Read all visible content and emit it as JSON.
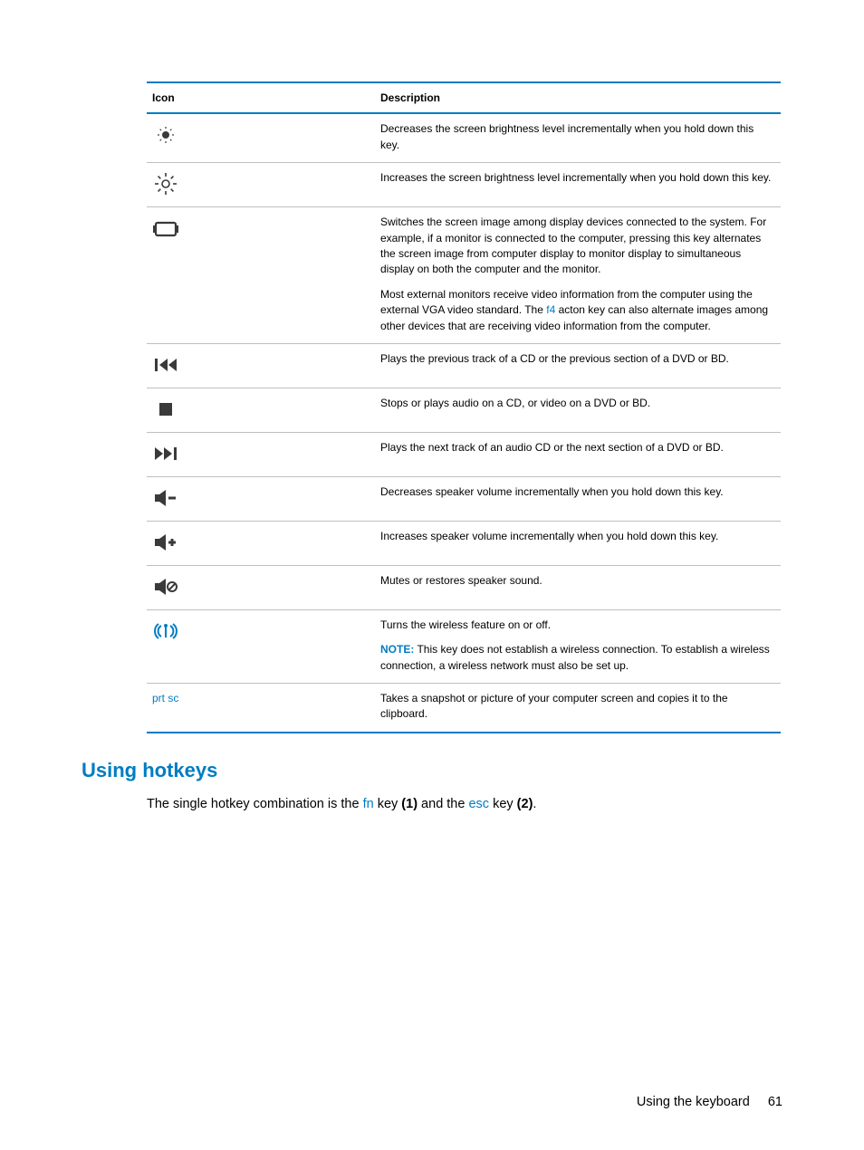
{
  "table": {
    "header_icon": "Icon",
    "header_desc": "Description",
    "rows": [
      {
        "icon": "brightness-down",
        "desc_html": [
          {
            "type": "text",
            "text": "Decreases the screen brightness level incrementally when you hold down this key."
          }
        ]
      },
      {
        "icon": "brightness-up",
        "desc_html": [
          {
            "type": "text",
            "text": "Increases the screen brightness level incrementally when you hold down this key."
          }
        ]
      },
      {
        "icon": "display-switch",
        "desc_html": [
          {
            "type": "para",
            "parts": [
              {
                "t": "text",
                "v": "Switches the screen image among display devices connected to the system. For example, if a monitor is connected to the computer, pressing this key alternates the screen image from computer display to monitor display to simultaneous display on both the computer and the monitor."
              }
            ]
          },
          {
            "type": "para",
            "parts": [
              {
                "t": "text",
                "v": "Most external monitors receive video information from the computer using the external VGA video standard. The "
              },
              {
                "t": "key",
                "v": "f4"
              },
              {
                "t": "text",
                "v": " acton key can also alternate images among other devices that are receiving video information from the computer."
              }
            ]
          }
        ]
      },
      {
        "icon": "prev-track",
        "desc_html": [
          {
            "type": "text",
            "text": "Plays the previous track of a CD or the previous section of a DVD or BD."
          }
        ]
      },
      {
        "icon": "stop",
        "desc_html": [
          {
            "type": "text",
            "text": "Stops or plays audio on a CD, or video on a DVD or BD."
          }
        ]
      },
      {
        "icon": "next-track",
        "desc_html": [
          {
            "type": "text",
            "text": "Plays the next track of an audio CD or the next section of a DVD or BD."
          }
        ]
      },
      {
        "icon": "volume-down",
        "desc_html": [
          {
            "type": "text",
            "text": "Decreases speaker volume incrementally when you hold down this key."
          }
        ]
      },
      {
        "icon": "volume-up",
        "desc_html": [
          {
            "type": "text",
            "text": "Increases speaker volume incrementally when you hold down this key."
          }
        ]
      },
      {
        "icon": "mute",
        "desc_html": [
          {
            "type": "text",
            "text": "Mutes or restores speaker sound."
          }
        ]
      },
      {
        "icon": "wireless",
        "desc_html": [
          {
            "type": "para",
            "parts": [
              {
                "t": "text",
                "v": "Turns the wireless feature on or off."
              }
            ]
          },
          {
            "type": "para",
            "parts": [
              {
                "t": "note",
                "v": "NOTE:"
              },
              {
                "t": "text",
                "v": "   This key does not establish a wireless connection. To establish a wireless connection, a wireless network must also be set up."
              }
            ]
          }
        ]
      },
      {
        "icon": "prtsc",
        "icon_text": "prt sc",
        "desc_html": [
          {
            "type": "text",
            "text": "Takes a snapshot or picture of your computer screen and copies it to the clipboard."
          }
        ]
      }
    ]
  },
  "section_heading": "Using hotkeys",
  "body_parts": [
    {
      "t": "text",
      "v": "The single hotkey combination is the "
    },
    {
      "t": "key",
      "v": "fn"
    },
    {
      "t": "text",
      "v": " key "
    },
    {
      "t": "bold",
      "v": "(1)"
    },
    {
      "t": "text",
      "v": " and the "
    },
    {
      "t": "key",
      "v": "esc"
    },
    {
      "t": "text",
      "v": " key "
    },
    {
      "t": "bold",
      "v": "(2)"
    },
    {
      "t": "text",
      "v": "."
    }
  ],
  "footer_text": "Using the keyboard",
  "page_number": "61",
  "colors": {
    "accent": "#007cc3",
    "icon_fill": "#3a3a3a",
    "wireless": "#007cc3"
  }
}
